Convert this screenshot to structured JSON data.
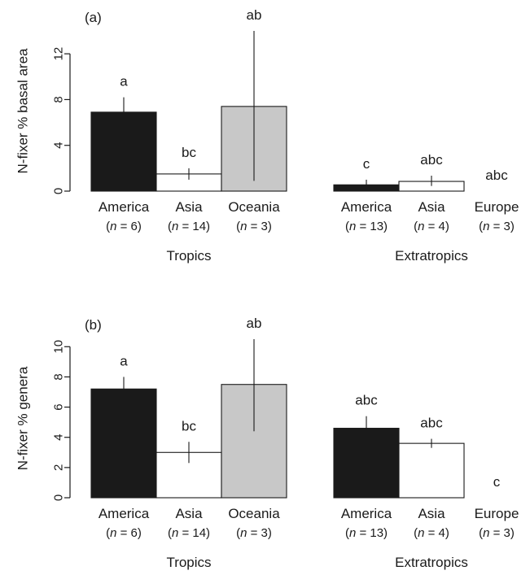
{
  "chart_data": [
    {
      "type": "bar",
      "panel_label": "(a)",
      "ylabel": "N-fixer % basal area",
      "ylim": [
        0,
        14
      ],
      "yticks": [
        0,
        4,
        8,
        12
      ],
      "groups": [
        {
          "label": "Tropics",
          "bars": [
            {
              "category": "America",
              "n_label": "(n = 6)",
              "value": 6.9,
              "err_low": 5.5,
              "err_high": 8.2,
              "letters": "a",
              "color": "#1a1a1a"
            },
            {
              "category": "Asia",
              "n_label": "(n = 14)",
              "value": 1.5,
              "err_low": 1.0,
              "err_high": 2.0,
              "letters": "bc",
              "color": "#ffffff"
            },
            {
              "category": "Oceania",
              "n_label": "(n = 3)",
              "value": 7.4,
              "err_low": 0.9,
              "err_high": 14.0,
              "letters": "ab",
              "color": "#c8c8c8"
            }
          ]
        },
        {
          "label": "Extratropics",
          "bars": [
            {
              "category": "America",
              "n_label": "(n = 13)",
              "value": 0.55,
              "err_low": 0.15,
              "err_high": 1.0,
              "letters": "c",
              "color": "#1a1a1a"
            },
            {
              "category": "Asia",
              "n_label": "(n = 4)",
              "value": 0.85,
              "err_low": 0.45,
              "err_high": 1.35,
              "letters": "abc",
              "color": "#ffffff"
            },
            {
              "category": "Europe",
              "n_label": "(n = 3)",
              "value": 0.0,
              "err_low": 0.0,
              "err_high": 0.0,
              "letters": "abc",
              "color": "#ffffff"
            }
          ]
        }
      ]
    },
    {
      "type": "bar",
      "panel_label": "(b)",
      "ylabel": "N-fixer % genera",
      "ylim": [
        0,
        10.5
      ],
      "yticks": [
        0,
        2,
        4,
        6,
        8,
        10
      ],
      "groups": [
        {
          "label": "Tropics",
          "bars": [
            {
              "category": "America",
              "n_label": "(n = 6)",
              "value": 7.2,
              "err_low": 6.3,
              "err_high": 8.0,
              "letters": "a",
              "color": "#1a1a1a"
            },
            {
              "category": "Asia",
              "n_label": "(n = 14)",
              "value": 3.0,
              "err_low": 2.3,
              "err_high": 3.7,
              "letters": "bc",
              "color": "#ffffff"
            },
            {
              "category": "Oceania",
              "n_label": "(n = 3)",
              "value": 7.5,
              "err_low": 4.4,
              "err_high": 10.5,
              "letters": "ab",
              "color": "#c8c8c8"
            }
          ]
        },
        {
          "label": "Extratropics",
          "bars": [
            {
              "category": "America",
              "n_label": "(n = 13)",
              "value": 4.6,
              "err_low": 3.8,
              "err_high": 5.4,
              "letters": "abc",
              "color": "#1a1a1a"
            },
            {
              "category": "Asia",
              "n_label": "(n = 4)",
              "value": 3.6,
              "err_low": 3.3,
              "err_high": 3.9,
              "letters": "abc",
              "color": "#ffffff"
            },
            {
              "category": "Europe",
              "n_label": "(n = 3)",
              "value": 0.0,
              "err_low": 0.0,
              "err_high": 0.0,
              "letters": "c",
              "color": "#ffffff"
            }
          ]
        }
      ]
    }
  ]
}
